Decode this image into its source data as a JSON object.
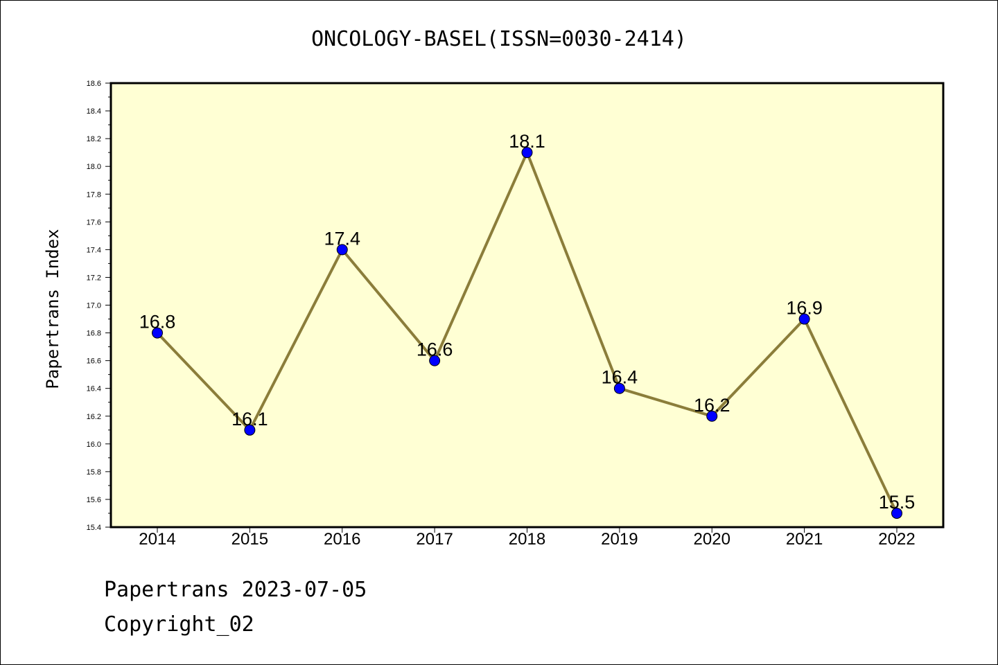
{
  "chart_data": {
    "type": "line",
    "title": "ONCOLOGY-BASEL(ISSN=0030-2414)",
    "xlabel": "",
    "ylabel": "Papertrans Index",
    "categories": [
      "2014",
      "2015",
      "2016",
      "2017",
      "2018",
      "2019",
      "2020",
      "2021",
      "2022"
    ],
    "series": [
      {
        "values": [
          16.8,
          16.1,
          17.4,
          16.6,
          18.1,
          16.4,
          16.2,
          16.9,
          15.5
        ],
        "data_labels": [
          "16.8",
          "16.1",
          "17.4",
          "16.6",
          "18.1",
          "16.4",
          "16.2",
          "16.9",
          "15.5"
        ]
      }
    ],
    "ylim": [
      15.4,
      18.6
    ],
    "yticks": [
      "15.4",
      "15.6",
      "15.8",
      "16.0",
      "16.2",
      "16.4",
      "16.6",
      "16.8",
      "17.0",
      "17.2",
      "17.4",
      "17.6",
      "17.8",
      "18.0",
      "18.2",
      "18.4",
      "18.6"
    ],
    "grid": false,
    "legend": "none",
    "colors": {
      "plot_background": "#ffffd4",
      "line": "#8b7d3a",
      "marker": "#0000ff"
    }
  },
  "footer": {
    "date_line": "Papertrans 2023-07-05",
    "copyright": "Copyright_02"
  }
}
